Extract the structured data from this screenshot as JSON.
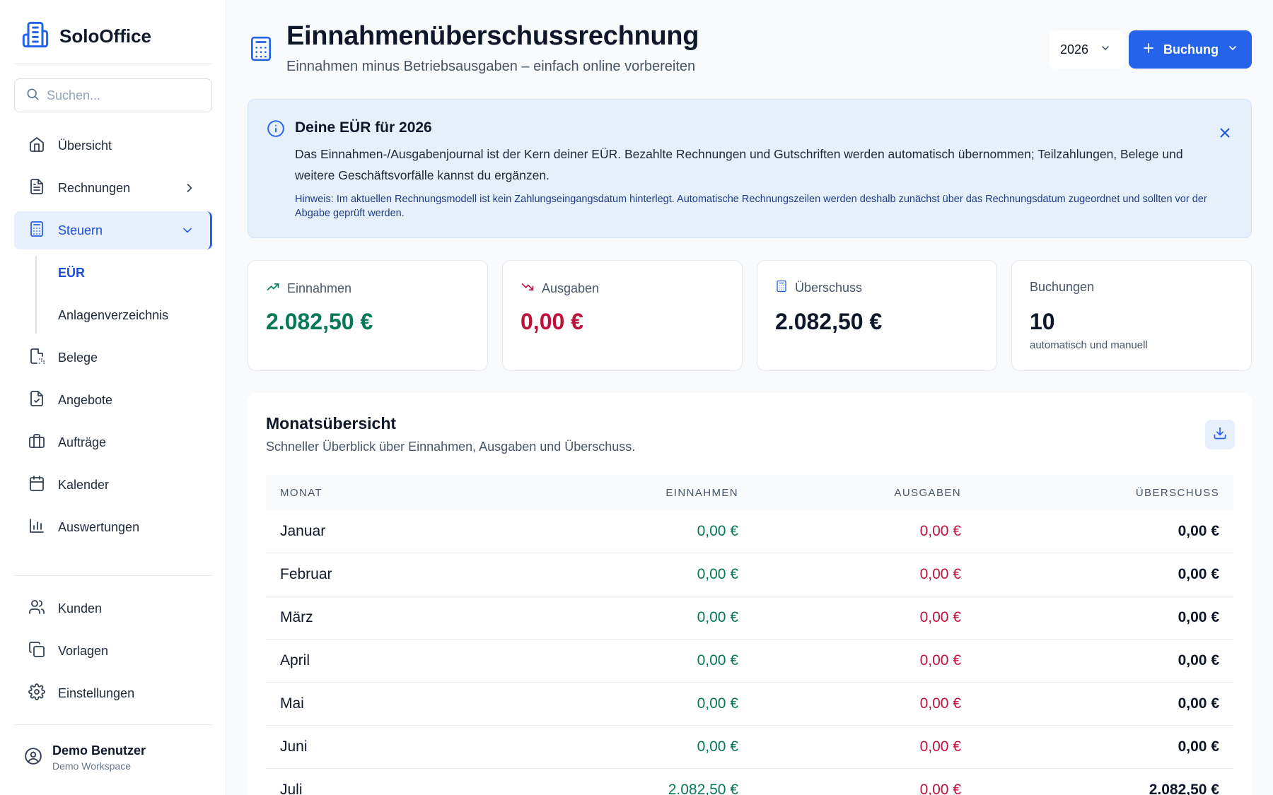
{
  "app": {
    "name": "SoloOffice"
  },
  "search": {
    "placeholder": "Suchen..."
  },
  "sidebar": {
    "items": [
      {
        "label": "Übersicht"
      },
      {
        "label": "Rechnungen"
      },
      {
        "label": "Steuern"
      },
      {
        "label": "Belege"
      },
      {
        "label": "Angebote"
      },
      {
        "label": "Aufträge"
      },
      {
        "label": "Kalender"
      },
      {
        "label": "Auswertungen"
      }
    ],
    "subitems": [
      {
        "label": "EÜR"
      },
      {
        "label": "Anlagenverzeichnis"
      }
    ],
    "bottom_items": [
      {
        "label": "Kunden"
      },
      {
        "label": "Vorlagen"
      },
      {
        "label": "Einstellungen"
      }
    ]
  },
  "user": {
    "name": "Demo Benutzer",
    "workspace": "Demo Workspace"
  },
  "header": {
    "title": "Einnahmenüberschussrechnung",
    "subtitle": "Einnahmen minus Betriebsausgaben – einfach online vorbereiten",
    "year": "2026",
    "booking_label": "Buchung"
  },
  "info": {
    "title": "Deine EÜR für 2026",
    "text": "Das Einnahmen-/Ausgabenjournal ist der Kern deiner EÜR. Bezahlte Rechnungen und Gutschriften werden automatisch übernommen; Teilzahlungen, Belege und weitere Geschäftsvorfälle kannst du ergänzen.",
    "hint": "Hinweis: Im aktuellen Rechnungsmodell ist kein Zahlungseingangsdatum hinterlegt. Automatische Rechnungszeilen werden deshalb zunächst über das Rechnungsdatum zugeordnet und sollten vor der Abgabe geprüft werden."
  },
  "stats": [
    {
      "label": "Einnahmen",
      "value": "2.082,50 €",
      "color": "#047857"
    },
    {
      "label": "Ausgaben",
      "value": "0,00 €",
      "color": "#be123c"
    },
    {
      "label": "Überschuss",
      "value": "2.082,50 €",
      "color": "#0f172a"
    },
    {
      "label": "Buchungen",
      "value": "10",
      "note": "automatisch und manuell",
      "color": "#0f172a"
    }
  ],
  "monthly": {
    "title": "Monatsübersicht",
    "subtitle": "Schneller Überblick über Einnahmen, Ausgaben und Überschuss.",
    "columns": {
      "month": "MONAT",
      "income": "EINNAHMEN",
      "expenses": "AUSGABEN",
      "surplus": "ÜBERSCHUSS"
    },
    "rows": [
      {
        "month": "Januar",
        "income": "0,00 €",
        "expenses": "0,00 €",
        "surplus": "0,00 €"
      },
      {
        "month": "Februar",
        "income": "0,00 €",
        "expenses": "0,00 €",
        "surplus": "0,00 €"
      },
      {
        "month": "März",
        "income": "0,00 €",
        "expenses": "0,00 €",
        "surplus": "0,00 €"
      },
      {
        "month": "April",
        "income": "0,00 €",
        "expenses": "0,00 €",
        "surplus": "0,00 €"
      },
      {
        "month": "Mai",
        "income": "0,00 €",
        "expenses": "0,00 €",
        "surplus": "0,00 €"
      },
      {
        "month": "Juni",
        "income": "0,00 €",
        "expenses": "0,00 €",
        "surplus": "0,00 €"
      },
      {
        "month": "Juli",
        "income": "2.082,50 €",
        "expenses": "0,00 €",
        "surplus": "2.082,50 €"
      }
    ]
  },
  "colors": {
    "accent": "#2563eb",
    "income": "#047857",
    "expense": "#be123c"
  }
}
